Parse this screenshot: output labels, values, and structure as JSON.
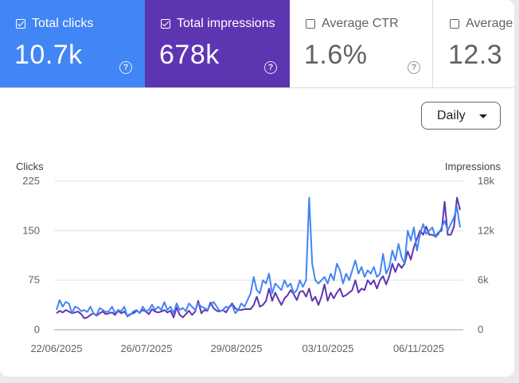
{
  "metrics": {
    "clicks": {
      "label": "Total clicks",
      "value": "10.7k",
      "checked": true,
      "color": "#4285f4"
    },
    "impressions": {
      "label": "Total impressions",
      "value": "678k",
      "checked": true,
      "color": "#5e35b1"
    },
    "ctr": {
      "label": "Average CTR",
      "value": "1.6%",
      "checked": false
    },
    "position": {
      "label": "Average p",
      "value": "12.3",
      "checked": false
    }
  },
  "help_glyph": "?",
  "period_select": {
    "value": "Daily"
  },
  "chart_data": {
    "type": "line",
    "xlabel": "",
    "y_left_label": "Clicks",
    "y_right_label": "Impressions",
    "y_left_ticks": [
      "225",
      "150",
      "75",
      "0"
    ],
    "y_left_lim": [
      0,
      225
    ],
    "y_right_ticks": [
      "18k",
      "12k",
      "6k",
      "0"
    ],
    "y_right_lim": [
      0,
      18000
    ],
    "x_ticks": [
      "22/06/2025",
      "26/07/2025",
      "29/08/2025",
      "03/10/2025",
      "06/11/2025"
    ],
    "grid": true,
    "series": [
      {
        "name": "Clicks",
        "axis": "left",
        "color": "#4285f4",
        "values": [
          30,
          45,
          35,
          42,
          40,
          25,
          35,
          33,
          28,
          30,
          27,
          35,
          25,
          22,
          33,
          30,
          27,
          28,
          35,
          25,
          30,
          28,
          35,
          20,
          23,
          28,
          30,
          25,
          35,
          28,
          30,
          38,
          30,
          35,
          30,
          42,
          30,
          35,
          25,
          40,
          30,
          33,
          28,
          40,
          35,
          30,
          40,
          35,
          33,
          30,
          38,
          42,
          35,
          28,
          30,
          35,
          33,
          38,
          25,
          30,
          40,
          35,
          45,
          55,
          80,
          60,
          55,
          75,
          70,
          85,
          55,
          70,
          65,
          60,
          75,
          65,
          70,
          55,
          60,
          75,
          65,
          75,
          200,
          100,
          75,
          70,
          75,
          80,
          70,
          85,
          75,
          100,
          90,
          70,
          85,
          75,
          90,
          105,
          85,
          95,
          80,
          90,
          85,
          95,
          80,
          85,
          115,
          85,
          95,
          120,
          105,
          130,
          110,
          100,
          150,
          135,
          155,
          120,
          145,
          160,
          145,
          150,
          155,
          140,
          145,
          155,
          165,
          150,
          160,
          170,
          185,
          155
        ]
      },
      {
        "name": "Impressions",
        "axis": "right",
        "color": "#5e35b1",
        "values": [
          2000,
          2300,
          2100,
          2400,
          2200,
          2000,
          2100,
          2200,
          1900,
          1400,
          1500,
          1800,
          2000,
          1700,
          2000,
          2200,
          1900,
          2000,
          2100,
          1800,
          2300,
          2000,
          2200,
          1700,
          1900,
          2000,
          2300,
          2100,
          2400,
          2200,
          1900,
          2500,
          2200,
          2100,
          2200,
          2400,
          2100,
          2300,
          1500,
          2700,
          1800,
          1500,
          1900,
          2300,
          1800,
          2200,
          3500,
          2000,
          2400,
          2300,
          3300,
          2600,
          2300,
          2200,
          2400,
          2100,
          2700,
          3200,
          2600,
          2400,
          2400,
          2500,
          2500,
          2500,
          3000,
          4000,
          2800,
          3000,
          3500,
          5000,
          3500,
          4500,
          3700,
          3000,
          3800,
          4200,
          4800,
          4300,
          3600,
          4600,
          4700,
          4000,
          5000,
          3500,
          4000,
          3000,
          4000,
          5500,
          3500,
          4500,
          3800,
          4500,
          5000,
          4000,
          4200,
          4500,
          4800,
          6000,
          4500,
          5000,
          4800,
          6000,
          5500,
          6000,
          5000,
          6000,
          6500,
          5500,
          6500,
          8000,
          7000,
          8000,
          7500,
          8000,
          9500,
          8500,
          10000,
          11000,
          12000,
          11500,
          12500,
          11500,
          11500,
          11300,
          11800,
          12000,
          15500,
          11500,
          11500,
          12500,
          16000,
          14500
        ]
      }
    ]
  }
}
